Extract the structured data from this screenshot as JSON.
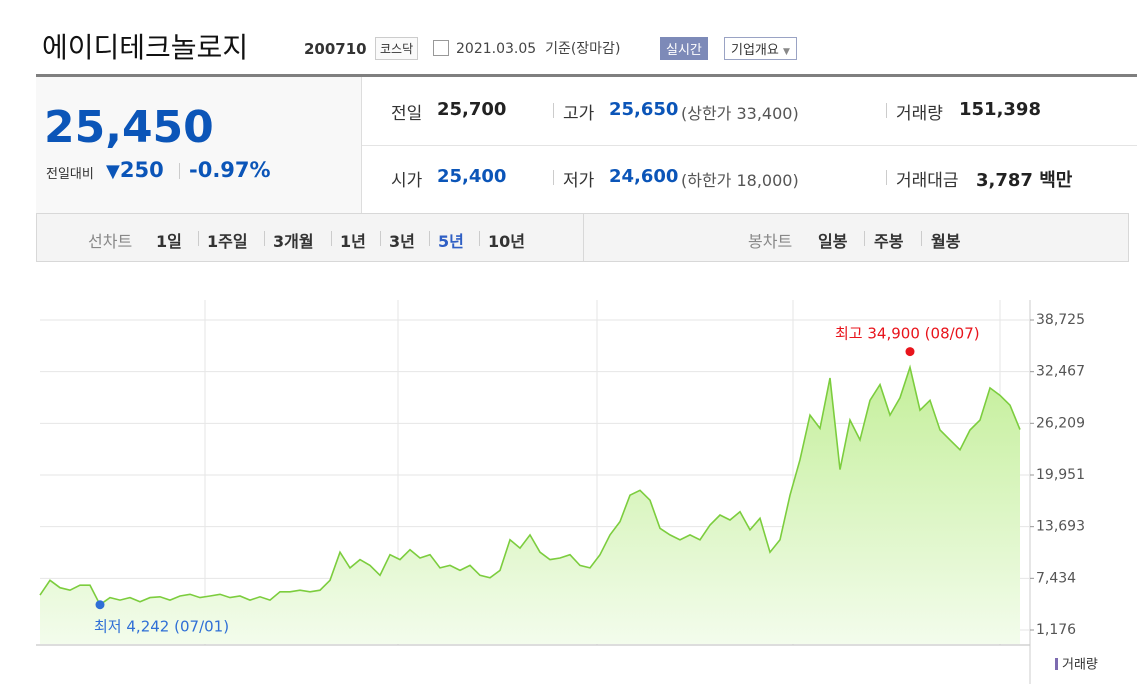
{
  "header": {
    "title": "에이디테크놀로지",
    "code": "200710",
    "market": "코스닥",
    "date": "2021.03.05",
    "basis": "기준(장마감)",
    "realtime": "실시간",
    "company": "기업개요"
  },
  "quote": {
    "price": "25,450",
    "change_label": "전일대비",
    "change": "250",
    "change_rate": "-0.97%"
  },
  "stats": [
    [
      {
        "label": "전일",
        "value": "25,700"
      },
      {
        "label": "고가",
        "value": "25,650",
        "note": "(상한가 33,400)"
      },
      {
        "label": "거래량",
        "value": "151,398"
      }
    ],
    [
      {
        "label": "시가",
        "value": "25,400"
      },
      {
        "label": "저가",
        "value": "24,600",
        "note": "(하한가 18,000)"
      },
      {
        "label": "거래대금",
        "value": "3,787 백만"
      }
    ]
  ],
  "tabs": {
    "line_label": "선차트",
    "line": [
      "1일",
      "1주일",
      "3개월",
      "1년",
      "3년",
      "5년",
      "10년"
    ],
    "active": 5,
    "candle_label": "봉차트",
    "candle": [
      "일봉",
      "주봉",
      "월봉"
    ]
  },
  "chart_data": {
    "type": "line",
    "color": "#7ccd3e",
    "fill_top": "#c4ef9a",
    "fill_bottom": "#f3fcec",
    "values": [
      5400,
      7200,
      6300,
      6000,
      6600,
      6600,
      4242,
      5100,
      4800,
      5100,
      4600,
      5100,
      5200,
      4800,
      5300,
      5500,
      5100,
      5300,
      5500,
      5100,
      5300,
      4800,
      5200,
      4800,
      5800,
      5800,
      6000,
      5800,
      6000,
      7200,
      10600,
      8700,
      9700,
      9000,
      7800,
      10300,
      9700,
      10900,
      9900,
      10300,
      8700,
      9000,
      8400,
      9000,
      7800,
      7500,
      8400,
      12100,
      11100,
      12700,
      10600,
      9700,
      9900,
      10300,
      9000,
      8700,
      10300,
      12700,
      14300,
      17500,
      18100,
      16900,
      13500,
      12700,
      12100,
      12700,
      12100,
      13900,
      15100,
      14500,
      15500,
      13300,
      14700,
      10600,
      12100,
      17500,
      21800,
      27200,
      25600,
      31700,
      20600,
      26600,
      24200,
      29000,
      30900,
      27200,
      29300,
      33000,
      27800,
      29000,
      25400,
      24200,
      23000,
      25400,
      26600,
      30500,
      29600,
      28400,
      25450
    ],
    "ylim": [
      1176,
      38725
    ],
    "yticks": [
      {
        "value": 1176,
        "label": "1,176"
      },
      {
        "value": 7434,
        "label": "7,434"
      },
      {
        "value": 13693,
        "label": "13,693"
      },
      {
        "value": 19951,
        "label": "19,951"
      },
      {
        "value": 26209,
        "label": "26,209"
      },
      {
        "value": 32467,
        "label": "32,467"
      },
      {
        "value": 38725,
        "label": "38,725"
      }
    ],
    "grid": true,
    "annotations": [
      {
        "kind": "max",
        "label": "최고",
        "value": 34900,
        "value_label": "34,900",
        "date": "(08/07)",
        "color": "#e8141c"
      },
      {
        "kind": "min",
        "label": "최저",
        "value": 4242,
        "value_label": "4,242",
        "date": "(07/01)",
        "color": "#2f6fd6"
      }
    ],
    "volume_label": "거래량"
  }
}
